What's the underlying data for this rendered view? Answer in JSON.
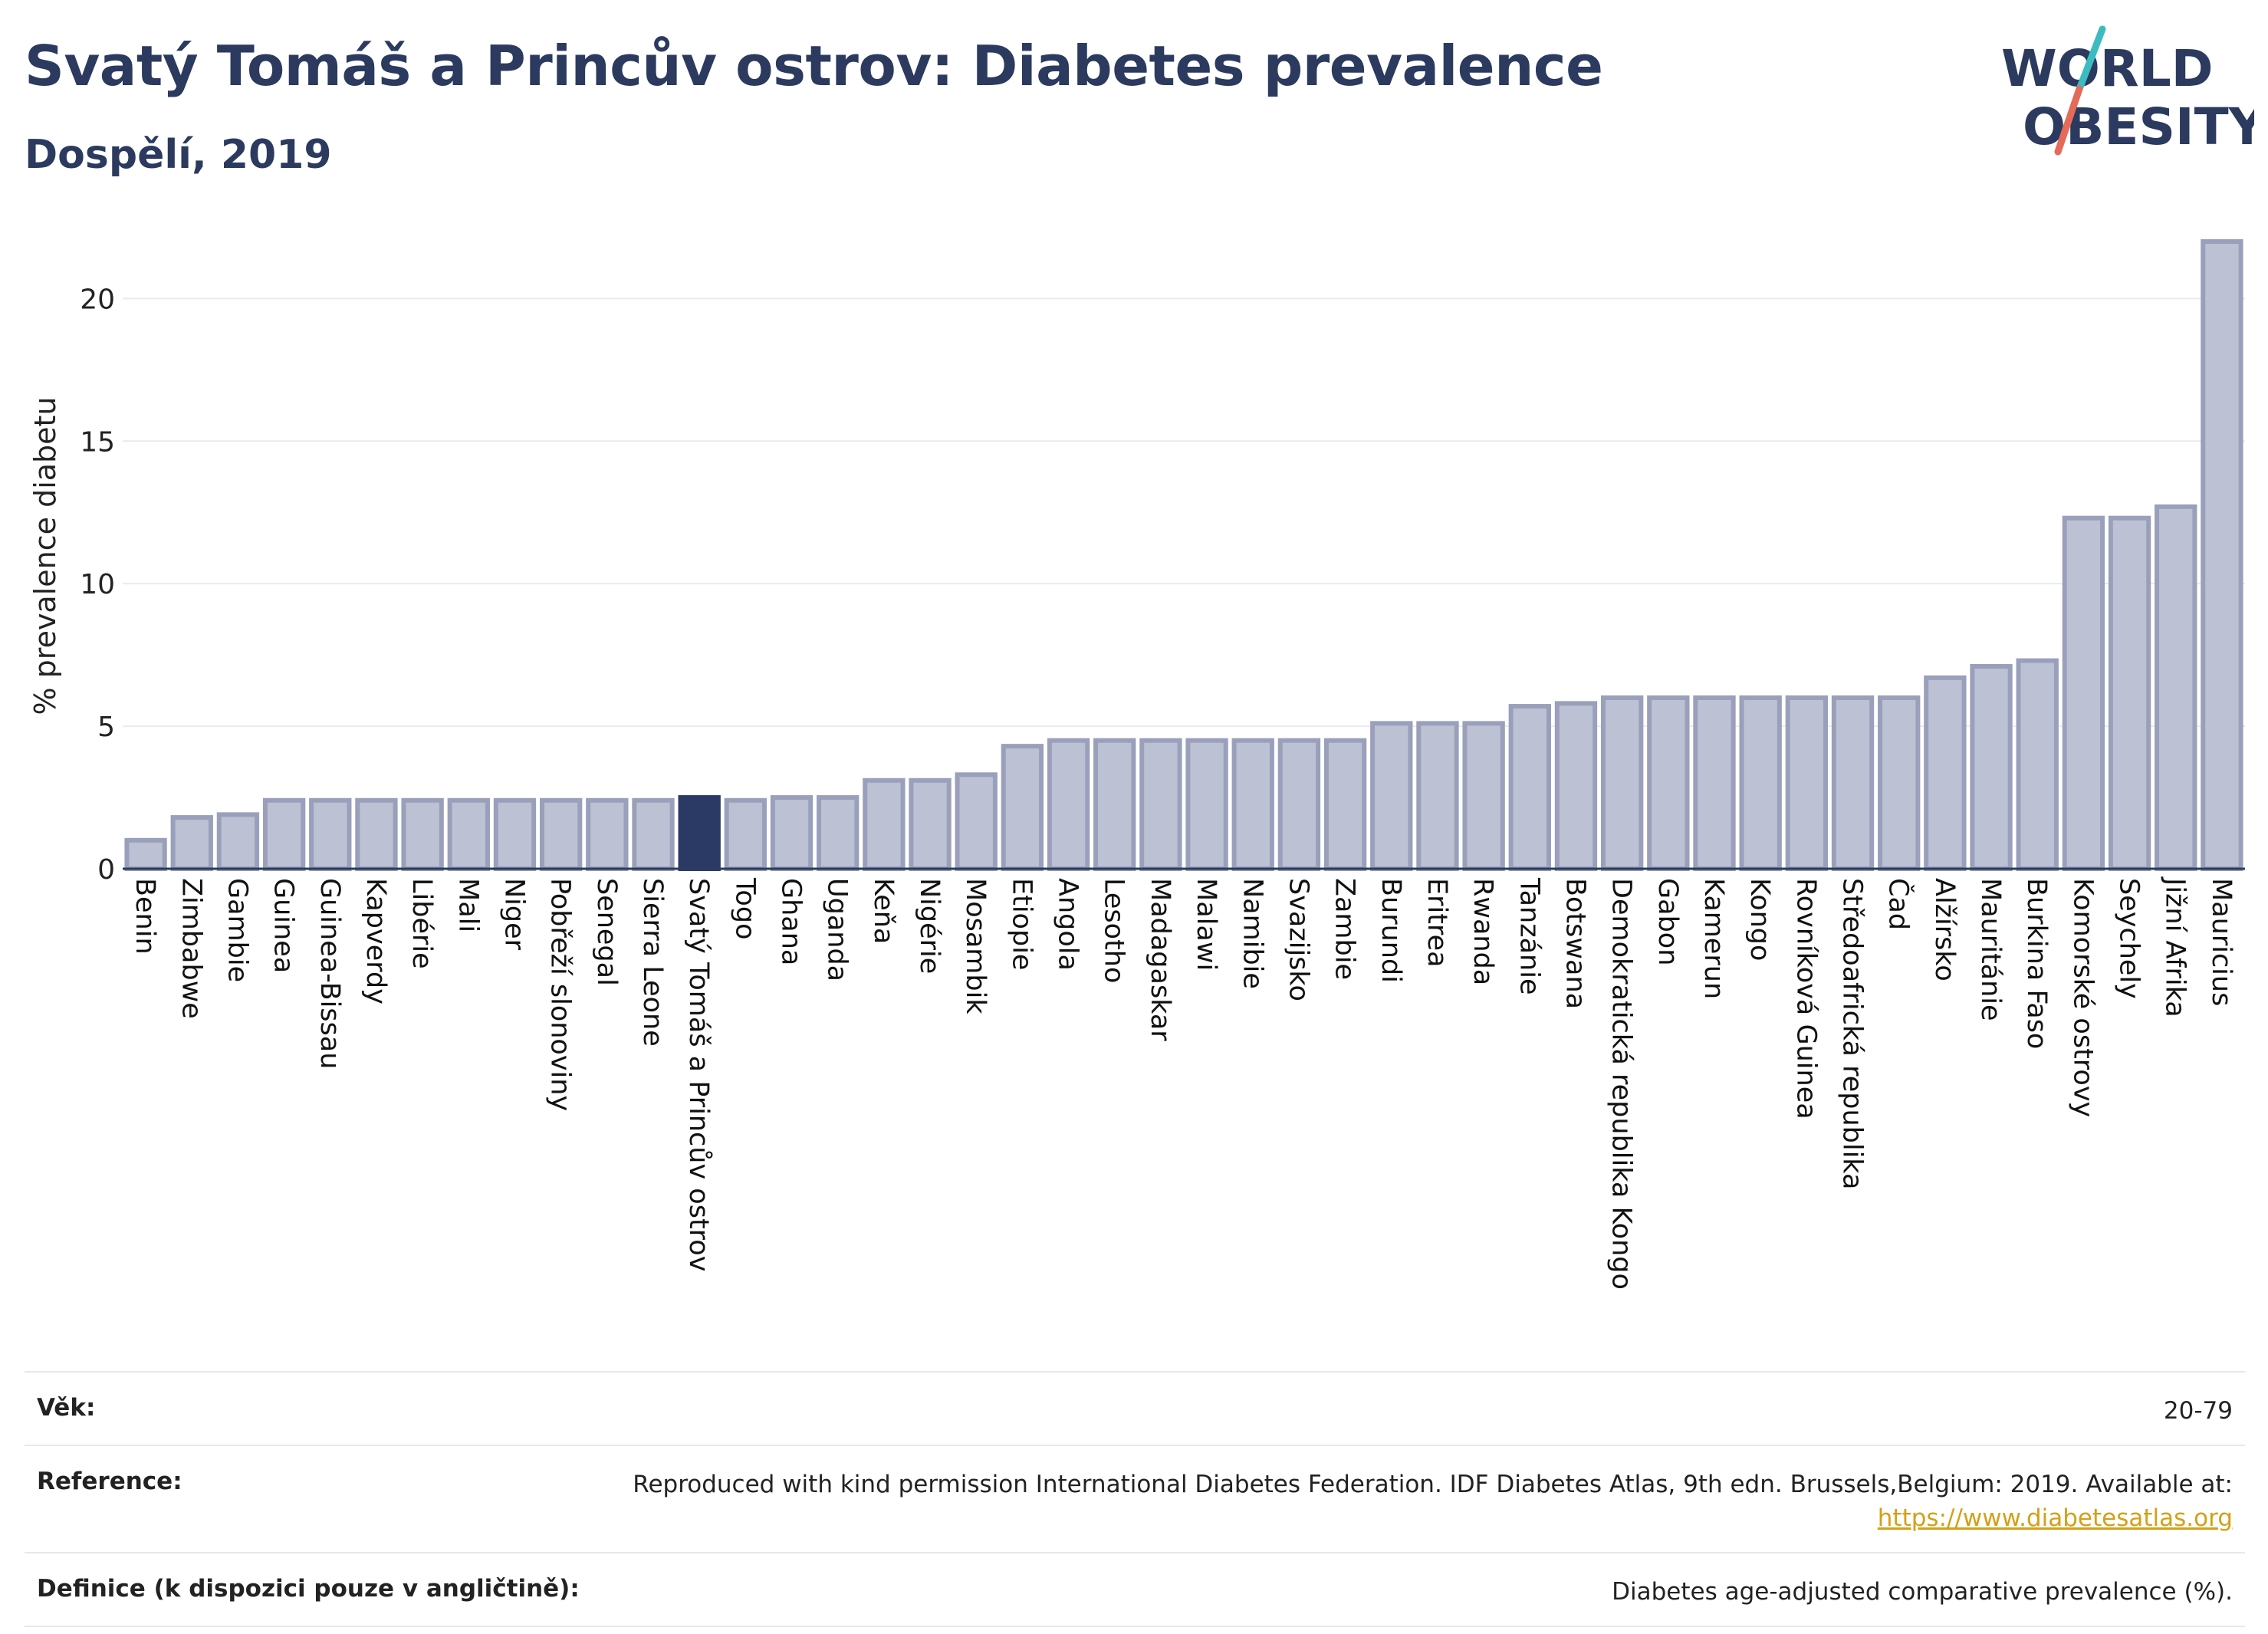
{
  "header": {
    "title": "Svatý Tomáš a Princův ostrov: Diabetes prevalence",
    "subtitle": "Dospělí, 2019"
  },
  "logo": {
    "line1": "WORLD",
    "line2": "OBESITY"
  },
  "colors": {
    "bar": "#bcc1d3",
    "bar_stroke": "#9aa0bb",
    "highlight": "#2b3a65",
    "title": "#2b3a5e",
    "link": "#d4a018"
  },
  "chart_data": {
    "type": "bar",
    "title": "Svatý Tomáš a Princův ostrov: Diabetes prevalence",
    "subtitle": "Dospělí, 2019",
    "ylabel": "% prevalence diabetu",
    "xlabel": "",
    "ylim": [
      0,
      22
    ],
    "yticks": [
      0,
      5,
      10,
      15,
      20
    ],
    "grid": true,
    "highlight": "Svatý Tomáš a Princův ostrov",
    "categories": [
      "Benin",
      "Zimbabwe",
      "Gambie",
      "Guinea",
      "Guinea-Bissau",
      "Kapverdy",
      "Libérie",
      "Mali",
      "Niger",
      "Pobřeží slonoviny",
      "Senegal",
      "Sierra Leone",
      "Svatý Tomáš a Princův ostrov",
      "Togo",
      "Ghana",
      "Uganda",
      "Keňa",
      "Nigérie",
      "Mosambik",
      "Etiopie",
      "Angola",
      "Lesotho",
      "Madagaskar",
      "Malawi",
      "Namibie",
      "Svazijsko",
      "Zambie",
      "Burundi",
      "Eritrea",
      "Rwanda",
      "Tanzánie",
      "Botswana",
      "Demokratická republika Kongo",
      "Gabon",
      "Kamerun",
      "Kongo",
      "Rovníková Guinea",
      "Středoafrická republika",
      "Čad",
      "Alžírsko",
      "Mauritánie",
      "Burkina Faso",
      "Komorské ostrovy",
      "Seychely",
      "Jižní Afrika",
      "Mauricius"
    ],
    "values": [
      1.0,
      1.8,
      1.9,
      2.4,
      2.4,
      2.4,
      2.4,
      2.4,
      2.4,
      2.4,
      2.4,
      2.4,
      2.5,
      2.4,
      2.5,
      2.5,
      3.1,
      3.1,
      3.3,
      4.3,
      4.5,
      4.5,
      4.5,
      4.5,
      4.5,
      4.5,
      4.5,
      5.1,
      5.1,
      5.1,
      5.7,
      5.8,
      6.0,
      6.0,
      6.0,
      6.0,
      6.0,
      6.0,
      6.0,
      6.7,
      7.1,
      7.3,
      12.3,
      12.3,
      12.7,
      22.0
    ]
  },
  "info": {
    "age_label": "Věk:",
    "age_value": "20-79",
    "reference_label": "Reference:",
    "reference_value": "Reproduced with kind permission International Diabetes Federation. IDF Diabetes Atlas, 9th edn. Brussels,Belgium: 2019. Available at:",
    "reference_link": "https://www.diabetesatlas.org",
    "definition_label": "Definice (k dispozici pouze v angličtině):",
    "definition_value": "Diabetes age-adjusted comparative prevalence (%)."
  }
}
